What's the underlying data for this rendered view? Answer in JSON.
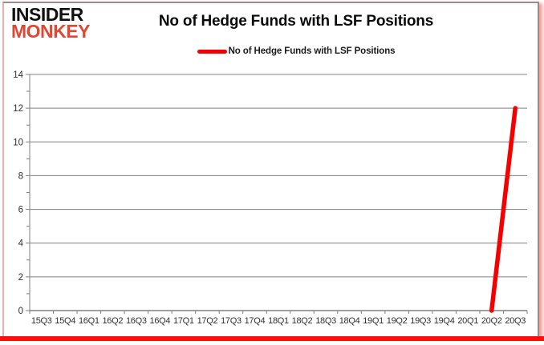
{
  "logo": {
    "line1": "INSIDER",
    "line2": "MONKEY"
  },
  "header": {
    "title": "No of Hedge Funds with LSF Positions"
  },
  "legend": {
    "label": "No of Hedge Funds with LSF Positions",
    "line_color": "#f40000"
  },
  "colors": {
    "series_red": "#f40000",
    "logo_red": "#dd4733",
    "grid_gray": "#808080",
    "axis_label": "#303030",
    "bottom_strip_red": "#fb0f0c"
  },
  "chart_data": {
    "type": "line",
    "title": "No of Hedge Funds with LSF Positions",
    "categories": [
      "15Q3",
      "15Q4",
      "16Q1",
      "16Q2",
      "16Q3",
      "16Q4",
      "17Q1",
      "17Q2",
      "17Q3",
      "17Q4",
      "18Q1",
      "18Q2",
      "18Q3",
      "18Q4",
      "19Q1",
      "19Q2",
      "19Q3",
      "19Q4",
      "20Q1",
      "20Q2",
      "20Q3"
    ],
    "series": [
      {
        "name": "No of Hedge Funds with LSF Positions",
        "color": "#f40000",
        "values": [
          null,
          null,
          null,
          null,
          null,
          null,
          null,
          null,
          null,
          null,
          null,
          null,
          null,
          null,
          null,
          null,
          null,
          null,
          null,
          0,
          12
        ]
      }
    ],
    "xlabel": "",
    "ylabel": "",
    "ylim": [
      0,
      14
    ],
    "y_ticks": [
      0,
      2,
      4,
      6,
      8,
      10,
      12,
      14
    ],
    "y_minor_step": 1,
    "grid": true,
    "legend_position": "top-center"
  }
}
